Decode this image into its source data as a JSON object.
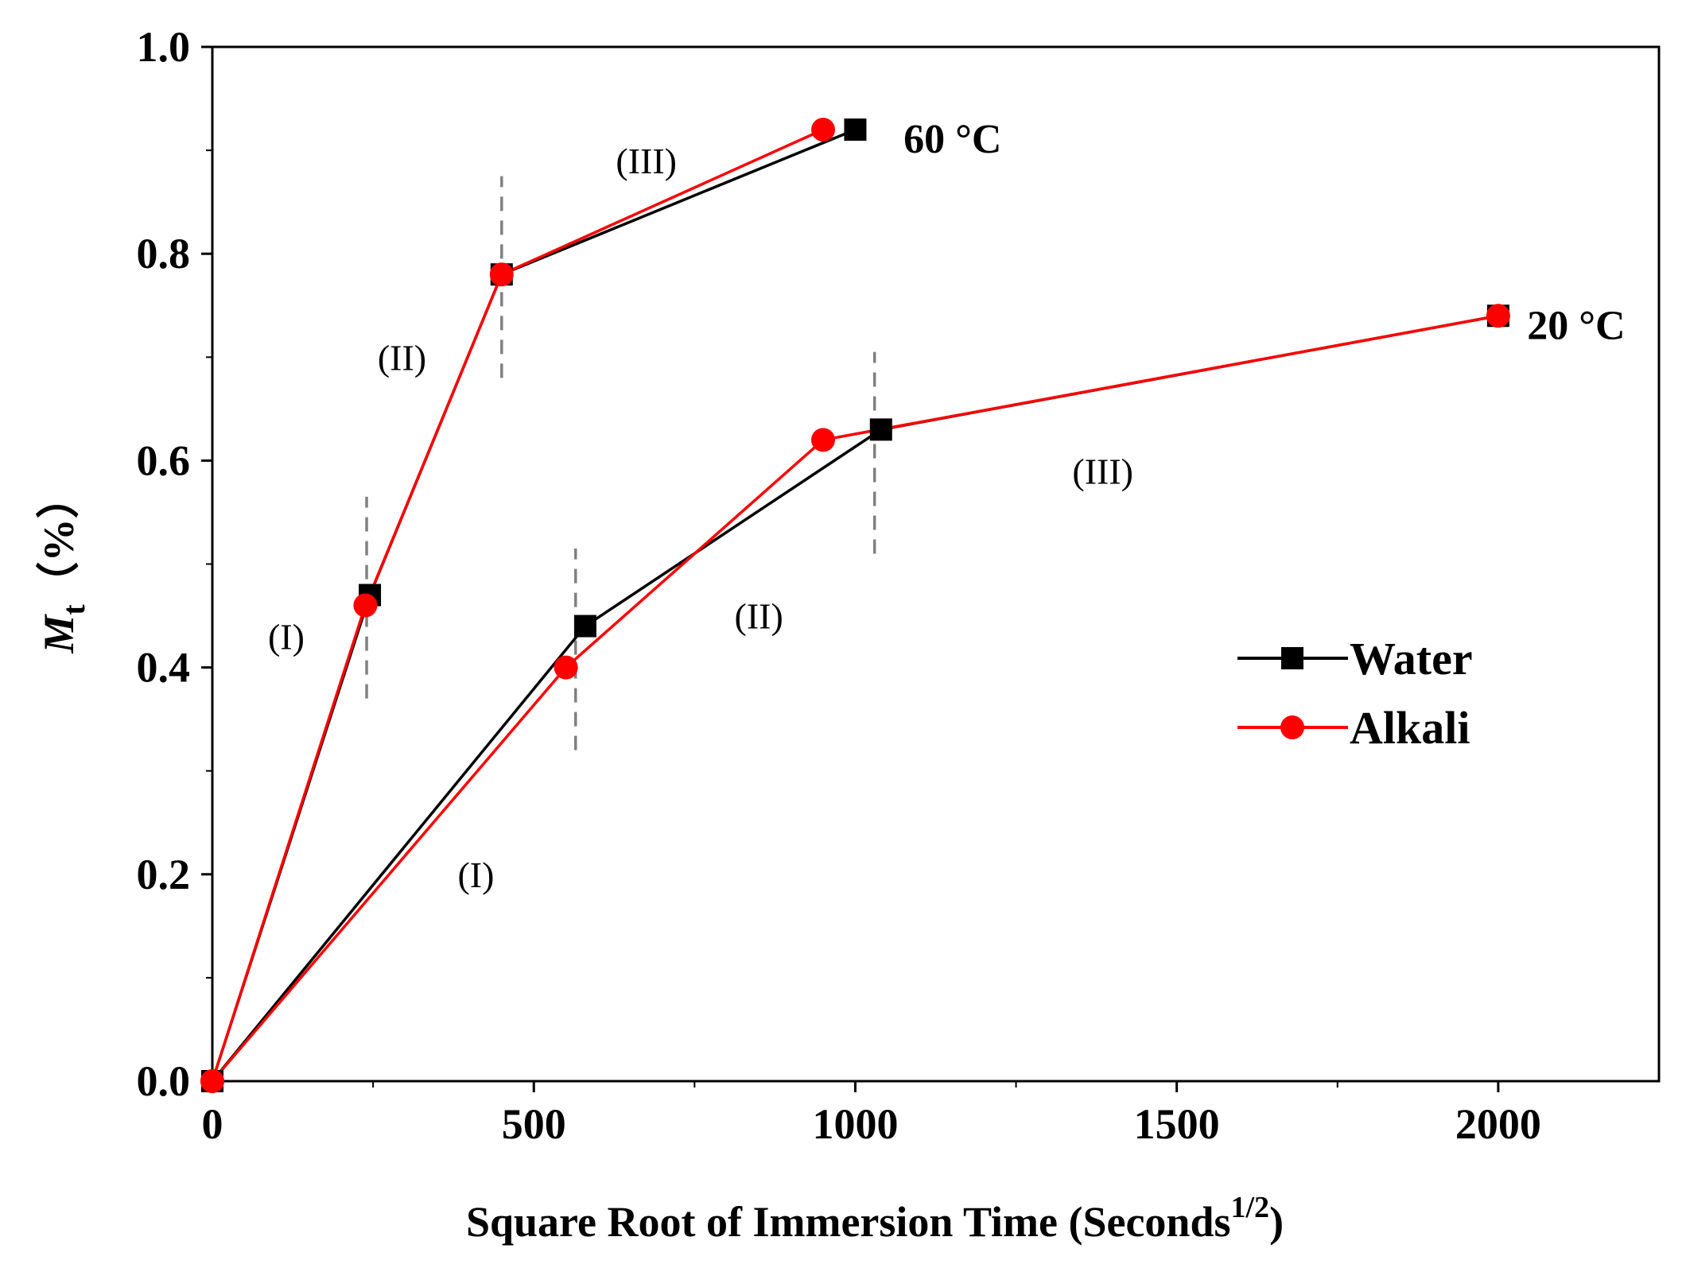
{
  "chart_data": {
    "type": "line",
    "title": "",
    "xlabel": "Square Root of Immersion Time (Seconds",
    "xlabel_superscript": "1/2",
    "xlabel_close": ")",
    "ylabel_main": "M",
    "ylabel_sub": "t",
    "ylabel_unit": "（%）",
    "xlim": [
      0,
      2250
    ],
    "ylim": [
      0,
      1.0
    ],
    "xticks": [
      0,
      500,
      1000,
      1500,
      2000
    ],
    "xtick_labels": [
      "0",
      "500",
      "1000",
      "1500",
      "2000"
    ],
    "yticks": [
      0.0,
      0.2,
      0.4,
      0.6,
      0.8,
      1.0
    ],
    "ytick_labels": [
      "0.0",
      "0.2",
      "0.4",
      "0.6",
      "0.8",
      "1.0"
    ],
    "legend": [
      "Water",
      "Alkali"
    ],
    "legend_position": "right-middle",
    "series": [
      {
        "name": "Water",
        "group": "60 °C",
        "color": "#000000",
        "marker": "square",
        "x": [
          0,
          245,
          450,
          1000
        ],
        "y": [
          0,
          0.47,
          0.78,
          0.92
        ]
      },
      {
        "name": "Alkali",
        "group": "60 °C",
        "color": "#ff0000",
        "marker": "circle",
        "x": [
          0,
          238,
          450,
          950
        ],
        "y": [
          0,
          0.46,
          0.78,
          0.92
        ]
      },
      {
        "name": "Water",
        "group": "20 °C",
        "color": "#000000",
        "marker": "square",
        "x": [
          0,
          580,
          1040,
          2000
        ],
        "y": [
          0,
          0.44,
          0.63,
          0.74
        ]
      },
      {
        "name": "Alkali",
        "group": "20 °C",
        "color": "#ff0000",
        "marker": "circle",
        "x": [
          0,
          550,
          950,
          2000
        ],
        "y": [
          0,
          0.4,
          0.62,
          0.74
        ]
      }
    ],
    "dividers": [
      {
        "x": 240,
        "y1": 0.37,
        "y2": 0.565
      },
      {
        "x": 450,
        "y1": 0.68,
        "y2": 0.875
      },
      {
        "x": 565,
        "y1": 0.32,
        "y2": 0.515
      },
      {
        "x": 1030,
        "y1": 0.51,
        "y2": 0.705
      }
    ],
    "annotations": [
      {
        "text": "(I)",
        "x": 115,
        "y": 0.43,
        "kind": "region"
      },
      {
        "text": "(II)",
        "x": 295,
        "y": 0.7,
        "kind": "region"
      },
      {
        "text": "(III)",
        "x": 675,
        "y": 0.89,
        "kind": "region"
      },
      {
        "text": "(I)",
        "x": 410,
        "y": 0.2,
        "kind": "region"
      },
      {
        "text": "(II)",
        "x": 850,
        "y": 0.45,
        "kind": "region"
      },
      {
        "text": "(III)",
        "x": 1385,
        "y": 0.59,
        "kind": "region"
      },
      {
        "text": "60 °C",
        "x": 1075,
        "y": 0.91,
        "kind": "temp"
      },
      {
        "text": "20 °C",
        "x": 2045,
        "y": 0.73,
        "kind": "temp"
      }
    ]
  }
}
